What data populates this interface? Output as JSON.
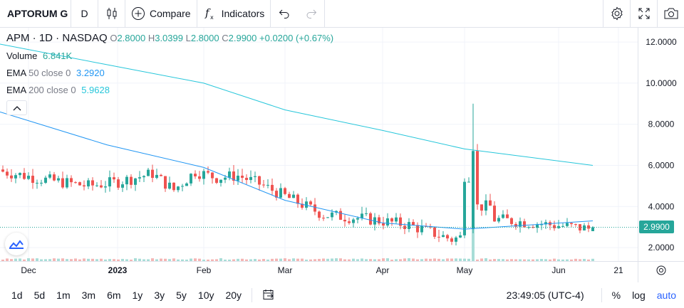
{
  "toolbar": {
    "symbol": "APTORUM G",
    "interval": "D",
    "compare_label": "Compare",
    "indicators_label": "Indicators"
  },
  "legend": {
    "title": "APM · 1D · NASDAQ",
    "ohlc": {
      "o_label": "O",
      "o": "2.8000",
      "h_label": "H",
      "h": "3.0399",
      "l_label": "L",
      "l": "2.8000",
      "c_label": "C",
      "c": "2.9900",
      "change": "+0.0200 (+0.67%)"
    },
    "volume_label": "Volume",
    "volume": "6.841K",
    "ema50_label": "EMA",
    "ema50_params": "50 close 0",
    "ema50_value": "3.2920",
    "ema200_label": "EMA",
    "ema200_params": "200 close 0",
    "ema200_value": "5.9628"
  },
  "price_axis": {
    "ticks": [
      "12.0000",
      "10.0000",
      "8.0000",
      "6.0000",
      "4.0000",
      "2.0000"
    ],
    "last_price": "2.9900"
  },
  "time_axis": {
    "labels": [
      "Dec",
      "2023",
      "Feb",
      "Mar",
      "Apr",
      "May",
      "Jun",
      "21"
    ]
  },
  "bottom_bar": {
    "ranges": [
      "1d",
      "5d",
      "1m",
      "3m",
      "6m",
      "1y",
      "3y",
      "5y",
      "10y",
      "20y"
    ],
    "clock": "23:49:05 (UTC-4)",
    "percent": "%",
    "log": "log",
    "auto": "auto"
  },
  "colors": {
    "up": "#26a69a",
    "down": "#ef5350",
    "ema50": "#2196f3",
    "ema200": "#26c6da",
    "accent": "#2962ff"
  },
  "chart_data": {
    "type": "candlestick",
    "x": [
      "Dec",
      "2023",
      "Feb",
      "Mar",
      "Apr",
      "May",
      "Jun"
    ],
    "ylim": [
      1.8,
      12.5
    ],
    "last": {
      "open": 2.8,
      "high": 3.0399,
      "low": 2.8,
      "close": 2.99
    },
    "ema50": {
      "name": "EMA 50 close 0",
      "values": [
        8.6,
        7.0,
        5.9,
        4.3,
        3.2,
        2.9,
        3.3
      ]
    },
    "ema200": {
      "name": "EMA 200 close 0",
      "values": [
        11.9,
        10.9,
        10.0,
        8.7,
        7.7,
        6.8,
        6.0
      ]
    }
  }
}
